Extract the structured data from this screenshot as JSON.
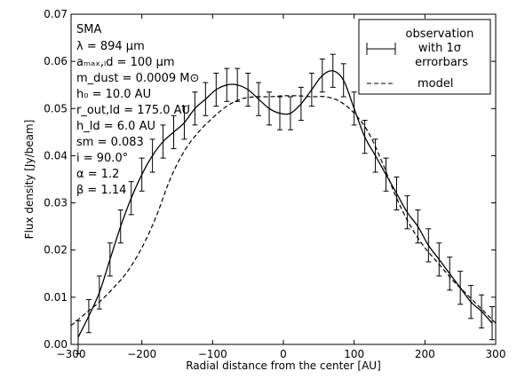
{
  "chart_data": {
    "type": "line",
    "xlabel": "Radial distance from the center [AU]",
    "ylabel": "Flux density [Jy/beam]",
    "xlim": [
      -300,
      300
    ],
    "ylim": [
      0.0,
      0.07
    ],
    "xticks": [
      -300,
      -200,
      -100,
      0,
      100,
      200,
      300
    ],
    "xtick_labels": [
      "−300",
      "−200",
      "−100",
      "0",
      "100",
      "200",
      "300"
    ],
    "yticks": [
      0.0,
      0.01,
      0.02,
      0.03,
      0.04,
      0.05,
      0.06,
      0.07
    ],
    "ytick_labels": [
      "0.00",
      "0.01",
      "0.02",
      "0.03",
      "0.04",
      "0.05",
      "0.06",
      "0.07"
    ],
    "grid": false,
    "legend_position": "top-right",
    "annotations": [
      "SMA",
      "λ = 894 µm",
      "aₘₐₓ,ₗd = 100 µm",
      "m_dust = 0.0009 M⊙",
      "h₀ = 10.0 AU",
      "r_out,ld = 175.0 AU",
      "h_ld = 6.0 AU",
      "sm = 0.083",
      "i = 90.0°",
      "α = 1.2",
      "β = 1.14"
    ],
    "series": [
      {
        "name": "observation with 1σ errorbars",
        "style": "solid-with-errorbars",
        "color": "#000000",
        "x": [
          -290,
          -275,
          -260,
          -245,
          -230,
          -215,
          -200,
          -185,
          -170,
          -155,
          -140,
          -125,
          -110,
          -95,
          -80,
          -65,
          -50,
          -35,
          -20,
          -5,
          10,
          25,
          40,
          55,
          70,
          85,
          100,
          115,
          130,
          145,
          160,
          175,
          190,
          205,
          220,
          235,
          250,
          265,
          280,
          295
        ],
        "y": [
          0.0015,
          0.006,
          0.011,
          0.018,
          0.025,
          0.031,
          0.036,
          0.04,
          0.043,
          0.045,
          0.047,
          0.05,
          0.052,
          0.054,
          0.055,
          0.055,
          0.054,
          0.052,
          0.05,
          0.049,
          0.049,
          0.051,
          0.054,
          0.057,
          0.058,
          0.056,
          0.05,
          0.044,
          0.04,
          0.036,
          0.032,
          0.028,
          0.025,
          0.021,
          0.018,
          0.015,
          0.012,
          0.009,
          0.007,
          0.0045
        ],
        "err": [
          0.0035,
          0.0035,
          0.0035,
          0.0035,
          0.0035,
          0.0035,
          0.0035,
          0.0035,
          0.0035,
          0.0035,
          0.0035,
          0.0035,
          0.0035,
          0.0035,
          0.0035,
          0.0035,
          0.0035,
          0.0035,
          0.0035,
          0.0035,
          0.0035,
          0.0035,
          0.0035,
          0.0035,
          0.0035,
          0.0035,
          0.0035,
          0.0035,
          0.0035,
          0.0035,
          0.0035,
          0.0035,
          0.0035,
          0.0035,
          0.0035,
          0.0035,
          0.0035,
          0.0035,
          0.0035,
          0.0035
        ]
      },
      {
        "name": "model",
        "style": "dashed",
        "color": "#000000",
        "x": [
          -300,
          -280,
          -260,
          -240,
          -220,
          -200,
          -180,
          -160,
          -140,
          -120,
          -100,
          -80,
          -60,
          -40,
          -20,
          0,
          20,
          40,
          60,
          80,
          100,
          120,
          140,
          160,
          180,
          200,
          220,
          240,
          260,
          280,
          300
        ],
        "y": [
          0.004,
          0.0065,
          0.009,
          0.012,
          0.0155,
          0.0205,
          0.027,
          0.035,
          0.041,
          0.045,
          0.048,
          0.0505,
          0.052,
          0.0525,
          0.0525,
          0.0527,
          0.0527,
          0.0525,
          0.0525,
          0.0515,
          0.049,
          0.045,
          0.0385,
          0.031,
          0.025,
          0.0205,
          0.017,
          0.0135,
          0.0105,
          0.0075,
          0.0045
        ]
      }
    ]
  }
}
